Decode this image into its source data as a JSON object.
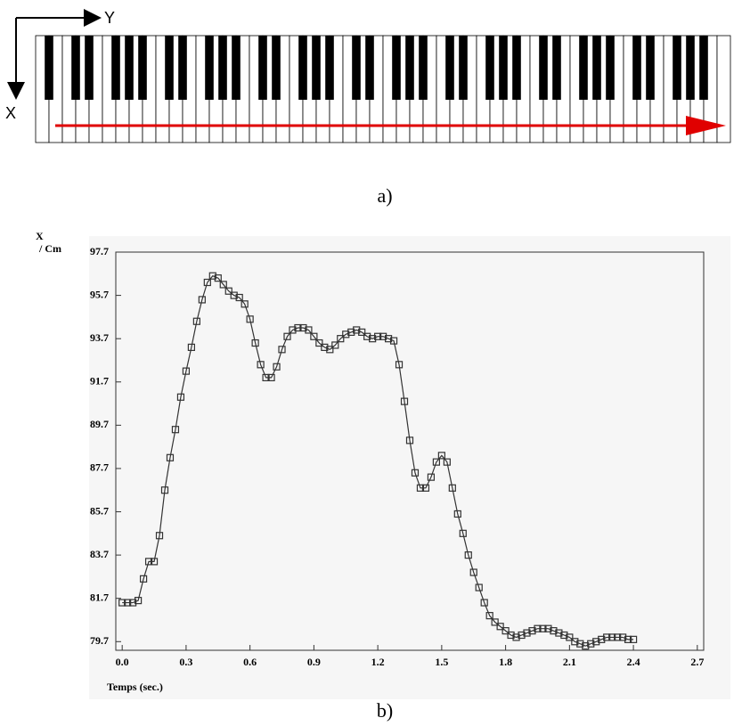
{
  "figure": {
    "panel_a": {
      "axis_y": "Y",
      "axis_x": "X",
      "caption": "a)"
    },
    "panel_b": {
      "caption": "b)"
    }
  },
  "chart_data": {
    "type": "line",
    "ylabel": [
      "X",
      "/ Cm"
    ],
    "xlabel": "Temps (sec.)",
    "xlim": [
      -0.03,
      2.73
    ],
    "ylim": [
      79.3,
      97.7
    ],
    "xticks": [
      {
        "value": 0,
        "label": "0.0"
      },
      0.3,
      0.6,
      0.9,
      1.2,
      1.5,
      1.8,
      2.1,
      2.4,
      2.7
    ],
    "yticks": [
      79.7,
      81.7,
      83.7,
      85.7,
      87.7,
      89.7,
      91.7,
      93.7,
      95.7,
      97.7
    ],
    "grid": false,
    "marker": "square",
    "color": "#333333",
    "x": [
      0,
      0.025,
      0.05,
      0.075,
      0.1,
      0.125,
      0.15,
      0.175,
      0.2,
      0.225,
      0.25,
      0.275,
      0.3,
      0.325,
      0.35,
      0.375,
      0.4,
      0.425,
      0.45,
      0.475,
      0.5,
      0.525,
      0.55,
      0.575,
      0.6,
      0.625,
      0.65,
      0.675,
      0.7,
      0.725,
      0.75,
      0.775,
      0.8,
      0.825,
      0.85,
      0.875,
      0.9,
      0.925,
      0.95,
      0.975,
      1.0,
      1.025,
      1.05,
      1.075,
      1.1,
      1.125,
      1.15,
      1.175,
      1.2,
      1.225,
      1.25,
      1.275,
      1.3,
      1.325,
      1.35,
      1.375,
      1.4,
      1.425,
      1.45,
      1.475,
      1.5,
      1.525,
      1.55,
      1.575,
      1.6,
      1.625,
      1.65,
      1.675,
      1.7,
      1.725,
      1.75,
      1.775,
      1.8,
      1.825,
      1.85,
      1.875,
      1.9,
      1.925,
      1.95,
      1.975,
      2.0,
      2.025,
      2.05,
      2.075,
      2.1,
      2.125,
      2.15,
      2.175,
      2.2,
      2.225,
      2.25,
      2.275,
      2.3,
      2.325,
      2.35,
      2.375,
      2.4
    ],
    "values": [
      81.5,
      81.5,
      81.5,
      81.6,
      82.6,
      83.4,
      83.4,
      84.6,
      86.7,
      88.2,
      89.5,
      91.0,
      92.2,
      93.3,
      94.5,
      95.5,
      96.3,
      96.6,
      96.5,
      96.2,
      95.9,
      95.7,
      95.6,
      95.3,
      94.6,
      93.5,
      92.5,
      91.9,
      91.9,
      92.4,
      93.2,
      93.8,
      94.1,
      94.2,
      94.2,
      94.1,
      93.8,
      93.5,
      93.3,
      93.2,
      93.4,
      93.7,
      93.9,
      94.0,
      94.1,
      94.0,
      93.8,
      93.7,
      93.8,
      93.8,
      93.7,
      93.6,
      92.5,
      90.8,
      89.0,
      87.5,
      86.8,
      86.8,
      87.3,
      88.0,
      88.3,
      88.0,
      86.8,
      85.6,
      84.7,
      83.7,
      82.9,
      82.2,
      81.5,
      80.9,
      80.6,
      80.4,
      80.2,
      80.0,
      79.9,
      80.0,
      80.1,
      80.2,
      80.3,
      80.3,
      80.3,
      80.2,
      80.1,
      80.0,
      79.9,
      79.7,
      79.6,
      79.5,
      79.6,
      79.7,
      79.8,
      79.9,
      79.9,
      79.9,
      79.9,
      79.8,
      79.8
    ]
  }
}
